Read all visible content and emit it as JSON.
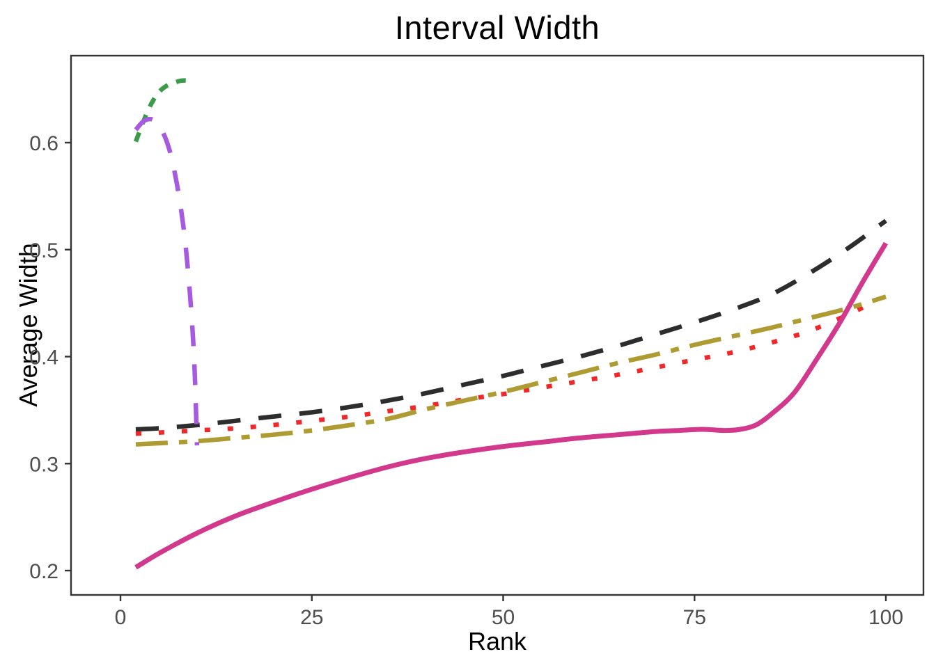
{
  "page": {
    "background": "#ffffff"
  },
  "chart_data": {
    "type": "line",
    "title": "Interval Width",
    "xlabel": "Rank",
    "ylabel": "Average Width",
    "xlim": [
      -6.5,
      105
    ],
    "ylim": [
      0.177,
      0.681
    ],
    "x_ticks": [
      0,
      25,
      50,
      75,
      100
    ],
    "y_ticks": [
      0.2,
      0.3,
      0.4,
      0.5,
      0.6
    ],
    "grid": false,
    "legend_position": "none",
    "axis_color": "#333333",
    "tick_label_color": "#4d4d4d",
    "title_color": "#000000",
    "series": [
      {
        "name": "green-dotted",
        "color": "#3c9b4b",
        "linetype": "dotted",
        "x": [
          2,
          3,
          4,
          5,
          6,
          7,
          8,
          9
        ],
        "y": [
          0.601,
          0.62,
          0.636,
          0.647,
          0.653,
          0.656,
          0.658,
          0.658
        ]
      },
      {
        "name": "black-dashed",
        "color": "#2d2d2d",
        "linetype": "dashed",
        "x": [
          2,
          5,
          10,
          15,
          20,
          25,
          30,
          35,
          40,
          45,
          50,
          55,
          60,
          65,
          70,
          75,
          80,
          85,
          90,
          95,
          100
        ],
        "y": [
          0.332,
          0.333,
          0.336,
          0.34,
          0.344,
          0.348,
          0.353,
          0.359,
          0.366,
          0.374,
          0.382,
          0.391,
          0.4,
          0.41,
          0.421,
          0.432,
          0.444,
          0.458,
          0.478,
          0.501,
          0.527
        ]
      },
      {
        "name": "red-dotted",
        "color": "#f1282a",
        "linetype": "dotfine",
        "x": [
          2,
          5,
          10,
          15,
          20,
          25,
          30,
          35,
          40,
          45,
          50,
          55,
          60,
          65,
          70,
          75,
          80,
          85,
          90,
          95,
          99
        ],
        "y": [
          0.328,
          0.329,
          0.331,
          0.333,
          0.336,
          0.34,
          0.344,
          0.349,
          0.354,
          0.36,
          0.365,
          0.371,
          0.377,
          0.383,
          0.39,
          0.397,
          0.404,
          0.413,
          0.424,
          0.439,
          0.453
        ]
      },
      {
        "name": "olive-dashdot",
        "color": "#ae9c33",
        "linetype": "dashdot",
        "x": [
          2,
          5,
          10,
          15,
          20,
          25,
          30,
          35,
          40,
          45,
          50,
          55,
          60,
          65,
          70,
          75,
          80,
          85,
          90,
          95,
          100
        ],
        "y": [
          0.318,
          0.319,
          0.321,
          0.324,
          0.327,
          0.331,
          0.336,
          0.342,
          0.351,
          0.359,
          0.367,
          0.376,
          0.385,
          0.394,
          0.402,
          0.411,
          0.419,
          0.427,
          0.436,
          0.445,
          0.456
        ]
      },
      {
        "name": "purple-longdash",
        "color": "#a65ae0",
        "linetype": "longdash",
        "x": [
          2,
          3,
          4,
          4.7,
          5.3,
          6,
          6.6,
          7.2,
          7.8,
          8.4,
          8.9,
          9.3,
          9.6,
          9.8,
          10
        ],
        "y": [
          0.612,
          0.62,
          0.622,
          0.619,
          0.613,
          0.602,
          0.588,
          0.568,
          0.543,
          0.511,
          0.474,
          0.437,
          0.401,
          0.365,
          0.317
        ]
      },
      {
        "name": "pink-solid",
        "color": "#d2388c",
        "linetype": "solid",
        "x": [
          2,
          5,
          10,
          15,
          20,
          25,
          30,
          35,
          40,
          45,
          50,
          55,
          60,
          65,
          70,
          73,
          76,
          79,
          81,
          83,
          85,
          88,
          91,
          94,
          97,
          100
        ],
        "y": [
          0.203,
          0.216,
          0.235,
          0.251,
          0.264,
          0.276,
          0.287,
          0.297,
          0.305,
          0.311,
          0.316,
          0.32,
          0.324,
          0.327,
          0.33,
          0.331,
          0.332,
          0.331,
          0.332,
          0.336,
          0.346,
          0.366,
          0.398,
          0.432,
          0.47,
          0.506
        ]
      }
    ]
  }
}
